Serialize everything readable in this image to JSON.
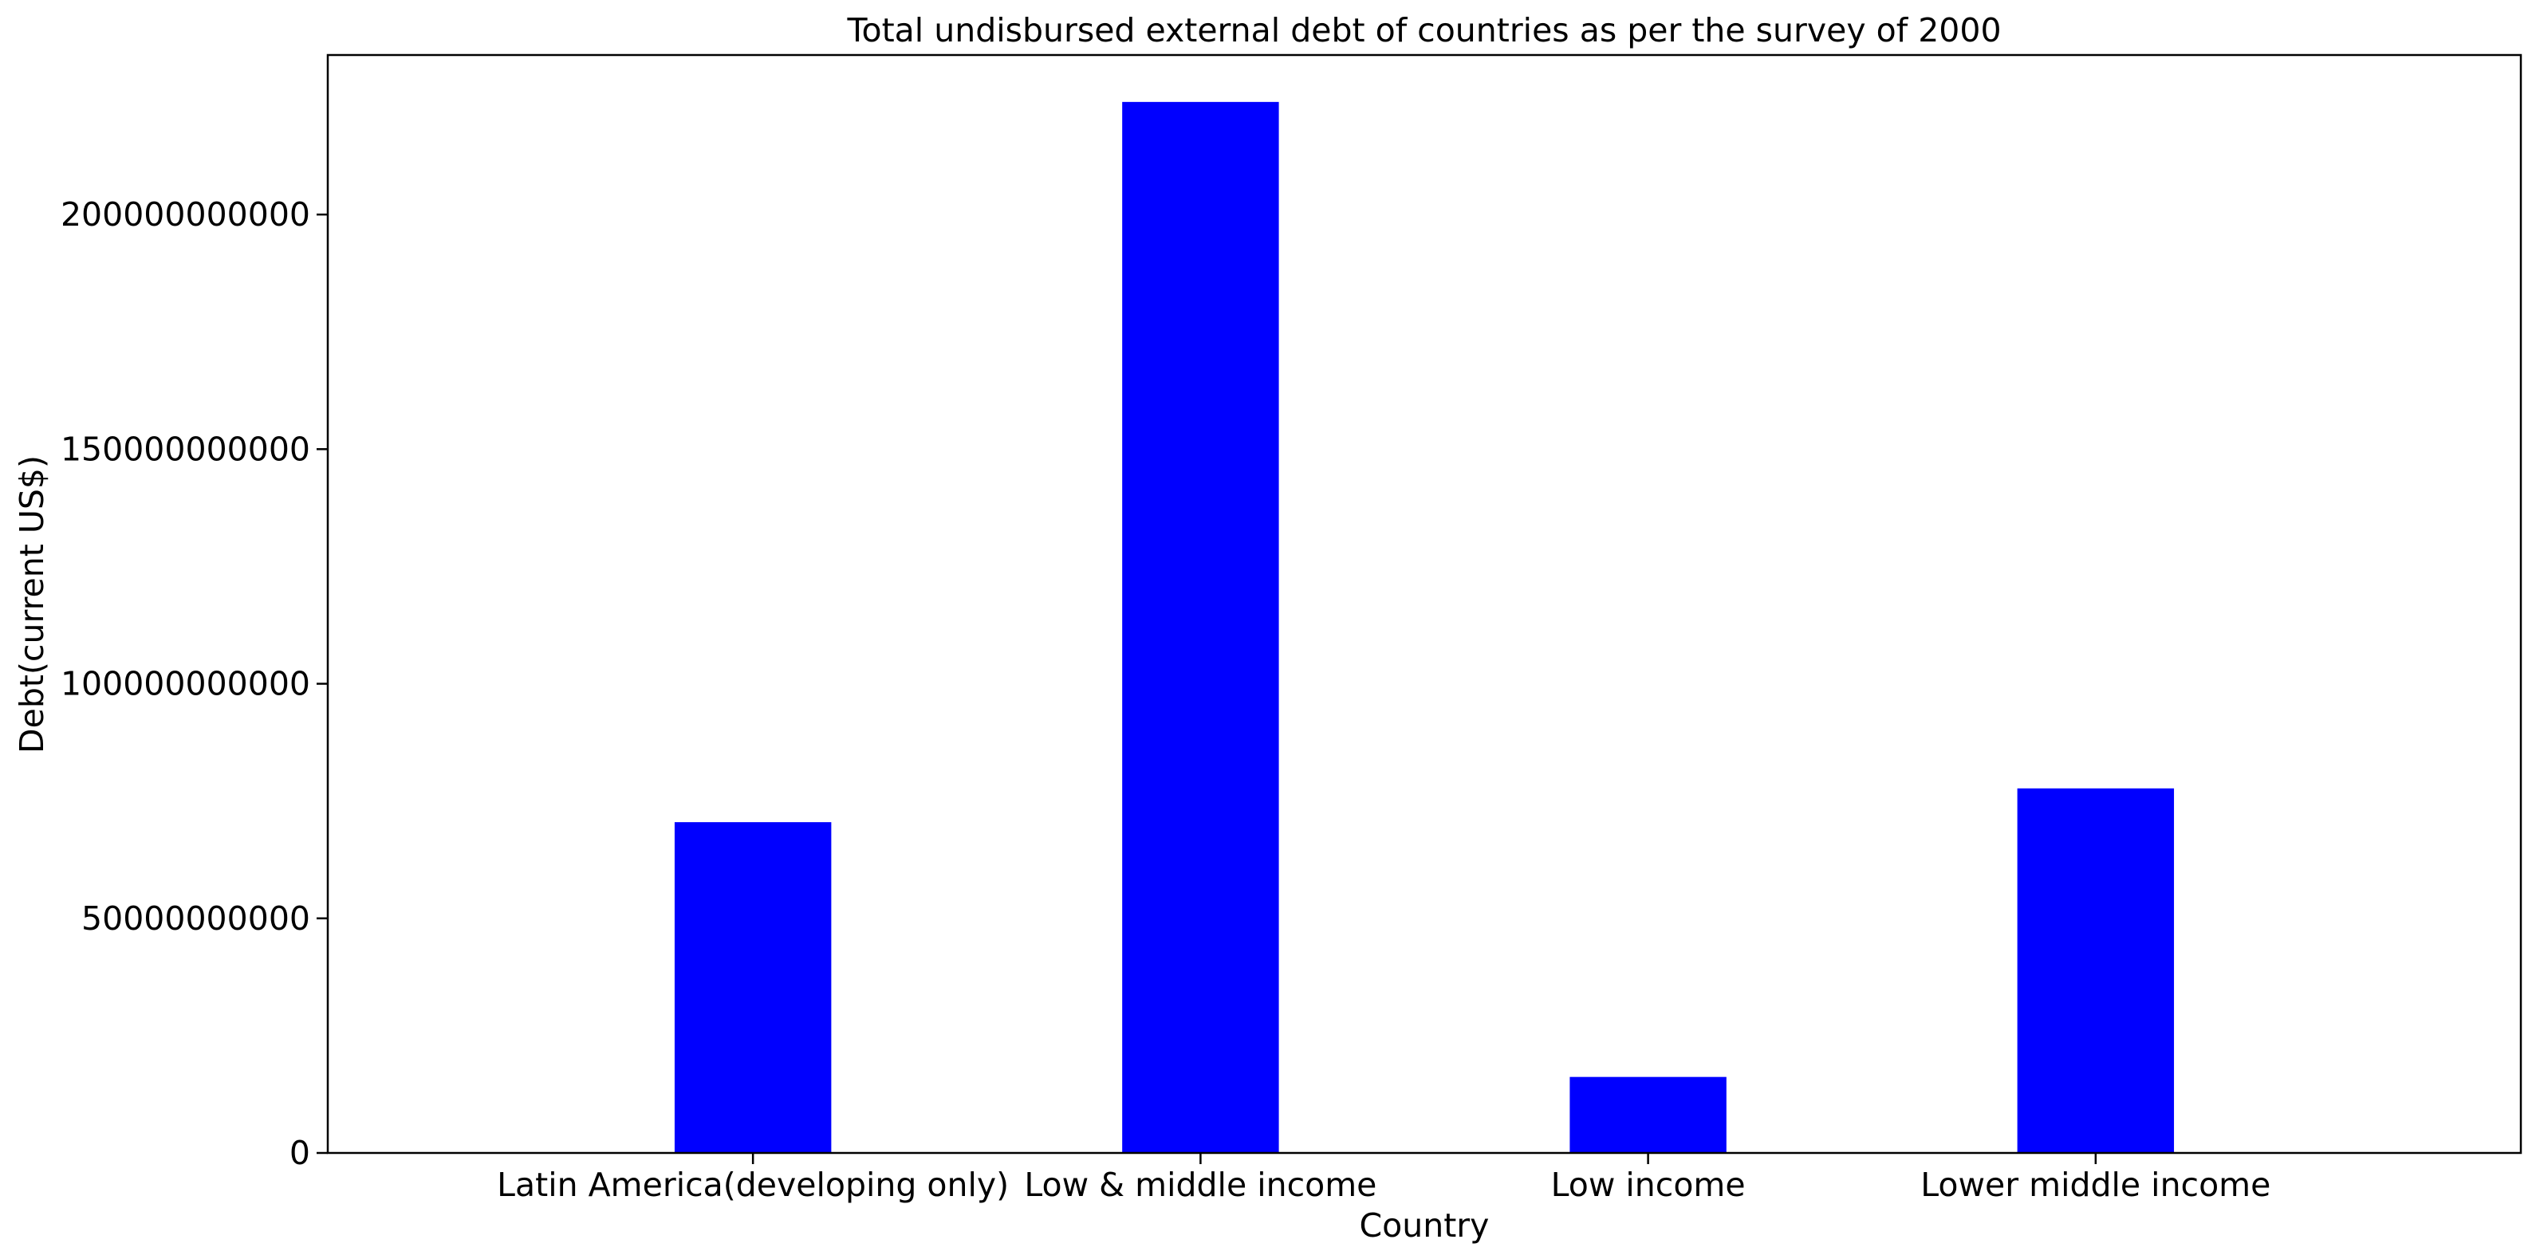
{
  "chart_data": {
    "type": "bar",
    "title": "Total undisbursed external debt of countries as per the survey of 2000",
    "xlabel": "Country",
    "ylabel": "Debt(current US$)",
    "categories": [
      "Latin America(developing only)",
      "Low & middle income",
      "Low income",
      "Lower middle income"
    ],
    "values": [
      70500000000,
      224000000000,
      16200000000,
      77700000000
    ],
    "ylim": [
      0,
      234000000000
    ],
    "yticks": [
      0,
      50000000000,
      100000000000,
      150000000000,
      200000000000
    ],
    "ytick_labels": [
      "0",
      "50000000000",
      "100000000000",
      "150000000000",
      "200000000000"
    ],
    "grid": false,
    "bar_color": "#0000ff"
  }
}
